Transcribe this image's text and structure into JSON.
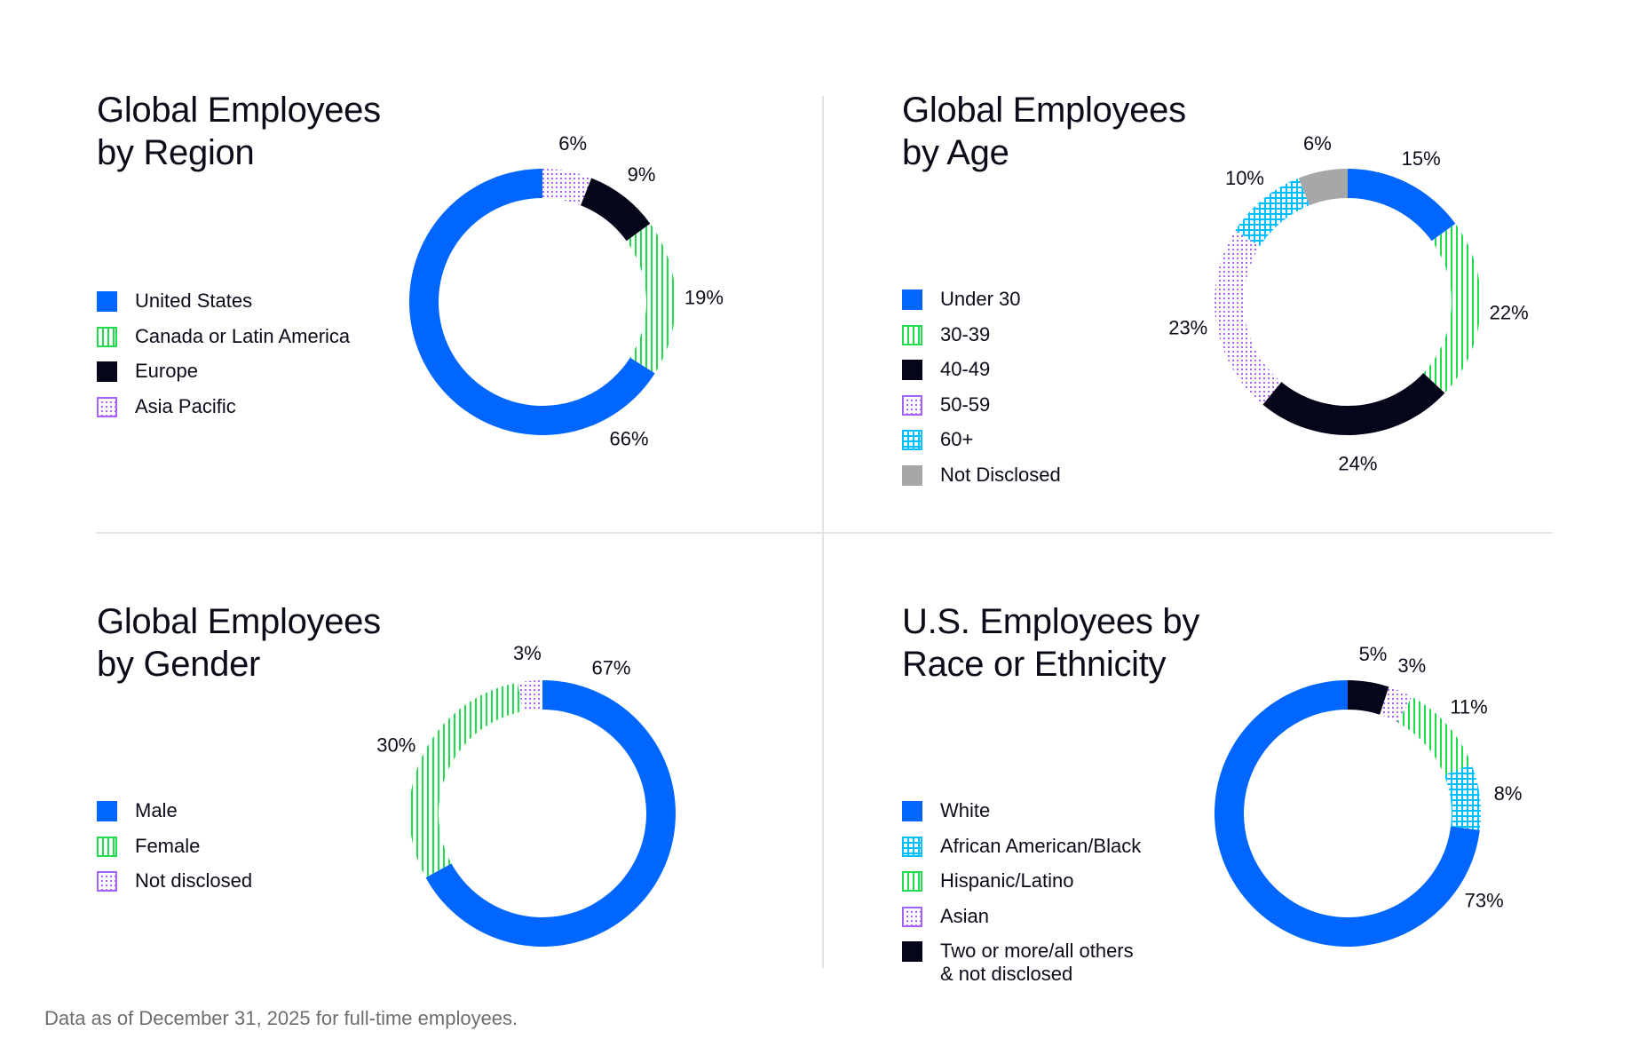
{
  "colors": {
    "blue": "#0066ff",
    "green": "#1fdc4f",
    "black": "#06061a",
    "purple": "#a663ff",
    "cyan": "#00bfff",
    "gray": "#a7a7aa"
  },
  "footnote": "Data as of December 31, 2025 for full-time employees.",
  "chart_data": [
    {
      "type": "pie",
      "donut": true,
      "title": "Global Employees\nby Region",
      "legend_placement": "left",
      "slices_clockwise_from_top": [
        {
          "label": "Asia Pacific",
          "value": 6,
          "value_label": "6%",
          "color": "purple",
          "pattern": "dots"
        },
        {
          "label": "Europe",
          "value": 9,
          "value_label": "9%",
          "color": "black",
          "pattern": "solid"
        },
        {
          "label": "Canada or Latin America",
          "value": 19,
          "value_label": "19%",
          "color": "green",
          "pattern": "vertical-stripes"
        },
        {
          "label": "United States",
          "value": 66,
          "value_label": "66%",
          "color": "blue",
          "pattern": "solid"
        }
      ],
      "legend": [
        "United States",
        "Canada or Latin America",
        "Europe",
        "Asia Pacific"
      ]
    },
    {
      "type": "pie",
      "donut": true,
      "title": "Global Employees\nby Age",
      "legend_placement": "left",
      "slices_clockwise_from_top": [
        {
          "label": "Under 30",
          "value": 15,
          "value_label": "15%",
          "color": "blue",
          "pattern": "solid"
        },
        {
          "label": "30-39",
          "value": 22,
          "value_label": "22%",
          "color": "green",
          "pattern": "vertical-stripes"
        },
        {
          "label": "40-49",
          "value": 24,
          "value_label": "24%",
          "color": "black",
          "pattern": "solid"
        },
        {
          "label": "50-59",
          "value": 23,
          "value_label": "23%",
          "color": "purple",
          "pattern": "dots"
        },
        {
          "label": "60+",
          "value": 10,
          "value_label": "10%",
          "color": "cyan",
          "pattern": "grid"
        },
        {
          "label": "Not Disclosed",
          "value": 6,
          "value_label": "6%",
          "color": "gray",
          "pattern": "solid"
        }
      ],
      "legend": [
        "Under 30",
        "30-39",
        "40-49",
        "50-59",
        "60+",
        "Not Disclosed"
      ]
    },
    {
      "type": "pie",
      "donut": true,
      "title": "Global Employees\nby Gender",
      "legend_placement": "left",
      "slices_clockwise_from_top": [
        {
          "label": "Male",
          "value": 67,
          "value_label": "67%",
          "color": "blue",
          "pattern": "solid"
        },
        {
          "label": "Female",
          "value": 30,
          "value_label": "30%",
          "color": "green",
          "pattern": "vertical-stripes"
        },
        {
          "label": "Not disclosed",
          "value": 3,
          "value_label": "3%",
          "color": "purple",
          "pattern": "dots"
        }
      ],
      "legend": [
        "Male",
        "Female",
        "Not disclosed"
      ]
    },
    {
      "type": "pie",
      "donut": true,
      "title": "U.S. Employees by\nRace or Ethnicity",
      "legend_placement": "left",
      "slices_clockwise_from_top": [
        {
          "label": "Two or more/all others\n& not disclosed",
          "value": 5,
          "value_label": "5%",
          "color": "black",
          "pattern": "solid"
        },
        {
          "label": "Asian",
          "value": 3,
          "value_label": "3%",
          "color": "purple",
          "pattern": "dots"
        },
        {
          "label": "Hispanic/Latino",
          "value": 11,
          "value_label": "11%",
          "color": "green",
          "pattern": "vertical-stripes"
        },
        {
          "label": "African American/Black",
          "value": 8,
          "value_label": "8%",
          "color": "cyan",
          "pattern": "grid"
        },
        {
          "label": "White",
          "value": 73,
          "value_label": "73%",
          "color": "blue",
          "pattern": "solid"
        }
      ],
      "legend": [
        "White",
        "African American/Black",
        "Hispanic/Latino",
        "Asian",
        "Two or more/all others\n& not disclosed"
      ]
    }
  ]
}
